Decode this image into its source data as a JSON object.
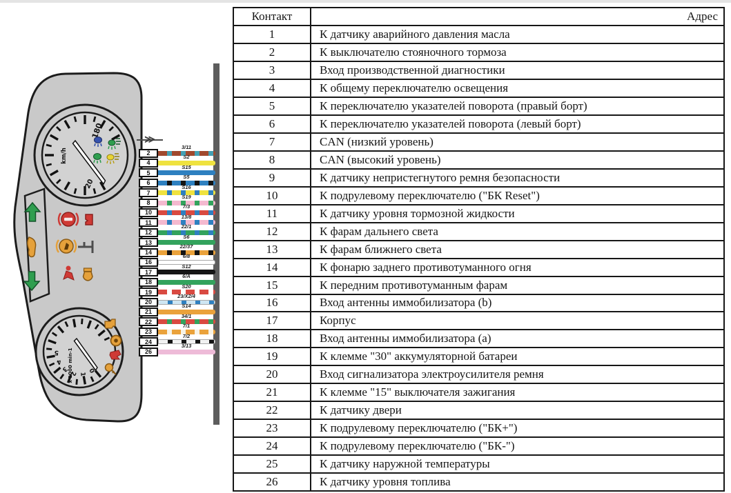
{
  "table": {
    "header": {
      "contact": "Контакт",
      "address": "Адрес"
    },
    "rows": [
      {
        "contact": "1",
        "address": "К датчику аварийного давления масла"
      },
      {
        "contact": "2",
        "address": "К выключателю стояночного тормоза"
      },
      {
        "contact": "3",
        "address": "Вход производственной диагностики"
      },
      {
        "contact": "4",
        "address": "К общему переключателю освещения"
      },
      {
        "contact": "5",
        "address": "К переключателю указателей поворота (правый борт)"
      },
      {
        "contact": "6",
        "address": "К переключателю указателей поворота (левый борт)"
      },
      {
        "contact": "7",
        "address": "CAN (низкий уровень)"
      },
      {
        "contact": "8",
        "address": "CAN (высокий уровень)"
      },
      {
        "contact": "9",
        "address": "К датчику непристегнутого ремня безопасности"
      },
      {
        "contact": "10",
        "address": "К подрулевому переключателю (\"БК Reset\")"
      },
      {
        "contact": "11",
        "address": "К датчику уровня тормозной жидкости"
      },
      {
        "contact": "12",
        "address": "К фарам дальнего света"
      },
      {
        "contact": "13",
        "address": "К фарам ближнего света"
      },
      {
        "contact": "14",
        "address": "К фонарю заднего противотуманного огня"
      },
      {
        "contact": "15",
        "address": "К передним противотуманным фарам"
      },
      {
        "contact": "16",
        "address": "Вход антенны иммобилизатора (b)"
      },
      {
        "contact": "17",
        "address": "Корпус"
      },
      {
        "contact": "18",
        "address": "Вход антенны иммобилизатора (a)"
      },
      {
        "contact": "19",
        "address": "К клемме \"30\" аккумуляторной батареи"
      },
      {
        "contact": "20",
        "address": "Вход сигнализатора электроусилителя ремня"
      },
      {
        "contact": "21",
        "address": "К клемме \"15\" выключателя зажигания"
      },
      {
        "contact": "22",
        "address": "К датчику двери"
      },
      {
        "contact": "23",
        "address": "К подрулевому переключателю (\"БК+\")"
      },
      {
        "contact": "24",
        "address": "К подрулевому переключателю (\"БК-\")"
      },
      {
        "contact": "25",
        "address": "К датчику наружной температуры"
      },
      {
        "contact": "26",
        "address": "К датчику уровня топлива"
      }
    ]
  },
  "connector": {
    "symbol": "≫",
    "pins": [
      {
        "pin": "2",
        "label": "3/11",
        "base": "#a0492e",
        "stripe": "#44a0b4",
        "outline": false
      },
      {
        "pin": "4",
        "label": "S2",
        "base": "#efe23f",
        "stripe": null,
        "outline": false
      },
      {
        "pin": "5",
        "label": "S15",
        "base": "#2e80c0",
        "stripe": null,
        "outline": false
      },
      {
        "pin": "6",
        "label": "S5",
        "base": "#2e80c0",
        "stripe": "#141414",
        "outline": false
      },
      {
        "pin": "7",
        "label": "S16",
        "base": "#efe23f",
        "stripe": "#2e80c0",
        "outline": false
      },
      {
        "pin": "8",
        "label": "S19",
        "base": "#f4b9cf",
        "stripe": "#33a35d",
        "outline": false
      },
      {
        "pin": "10",
        "label": "7/3",
        "base": "#d94a41",
        "stripe": "#2e80c0",
        "outline": false
      },
      {
        "pin": "11",
        "label": "13/8",
        "base": "#f4b9cf",
        "stripe": "#2e80c0",
        "outline": false
      },
      {
        "pin": "12",
        "label": "22/1",
        "base": "#33a35d",
        "stripe": "#2e80c0",
        "outline": false
      },
      {
        "pin": "13",
        "label": "S6",
        "base": "#33a35d",
        "stripe": null,
        "outline": false
      },
      {
        "pin": "14",
        "label": "22/37",
        "base": "#eaa23b",
        "stripe": "#141414",
        "outline": false
      },
      {
        "pin": "16",
        "label": "6/8",
        "base": "#ffffff",
        "stripe": null,
        "outline": true
      },
      {
        "pin": "17",
        "label": "S12",
        "base": "#161616",
        "stripe": null,
        "outline": false
      },
      {
        "pin": "18",
        "label": "6/A",
        "base": "#33a35d",
        "stripe": null,
        "outline": false
      },
      {
        "pin": "19",
        "label": "S20",
        "base": "#d94a41",
        "stripe": "#ffffff",
        "outline": false
      },
      {
        "pin": "20",
        "label": "23/X2/4",
        "base": "#cfe6f2",
        "stripe": "#2e80c0",
        "outline": true
      },
      {
        "pin": "21",
        "label": "S14",
        "base": "#eaa23b",
        "stripe": null,
        "outline": false
      },
      {
        "pin": "22",
        "label": "34/1",
        "base": "#d94a41",
        "stripe": "#33a35d",
        "outline": false
      },
      {
        "pin": "23",
        "label": "7/1",
        "base": "#eaa23b",
        "stripe": "#f7f3e6",
        "outline": false
      },
      {
        "pin": "24",
        "label": "7/2",
        "base": "#f2f2f2",
        "stripe": "#141414",
        "outline": true
      },
      {
        "pin": "26",
        "label": "3/13",
        "base": "#eebbd8",
        "stripe": null,
        "outline": false
      }
    ]
  },
  "cluster": {
    "speedometer": {
      "unit": "km/h",
      "max_label": "180",
      "min_label": "20"
    },
    "tachometer": {
      "unit": "x 1000 min-1",
      "tick_labels": [
        "0",
        "1",
        "2",
        "3",
        "4",
        "5"
      ]
    },
    "indicator_icons": [
      "high-beam-icon",
      "position-lights-icon",
      "low-beam-icon",
      "rear-fog-lamp-icon",
      "turn-left-indicator-icon",
      "car-body-icon",
      "turn-right-indicator-icon",
      "brake-warning-icon",
      "door-ajar-icon",
      "oil-pressure-icon",
      "fog-switch-icon",
      "seatbelt-icon",
      "fuel-icon",
      "check-engine-icon",
      "abs-icon",
      "battery-warning-icon",
      "immobilizer-icon"
    ]
  },
  "colors": {
    "cluster_body": "#c9c9c9",
    "cluster_outline": "#1c1c1c",
    "harness_bar": "#5d5d5d",
    "table_border": "#161616",
    "warning_red": "#cf3a35",
    "warning_amber": "#e5a13b",
    "indicator_green": "#2f9e4f",
    "indicator_blue": "#3552ae",
    "indicator_yellow": "#e8d334"
  }
}
